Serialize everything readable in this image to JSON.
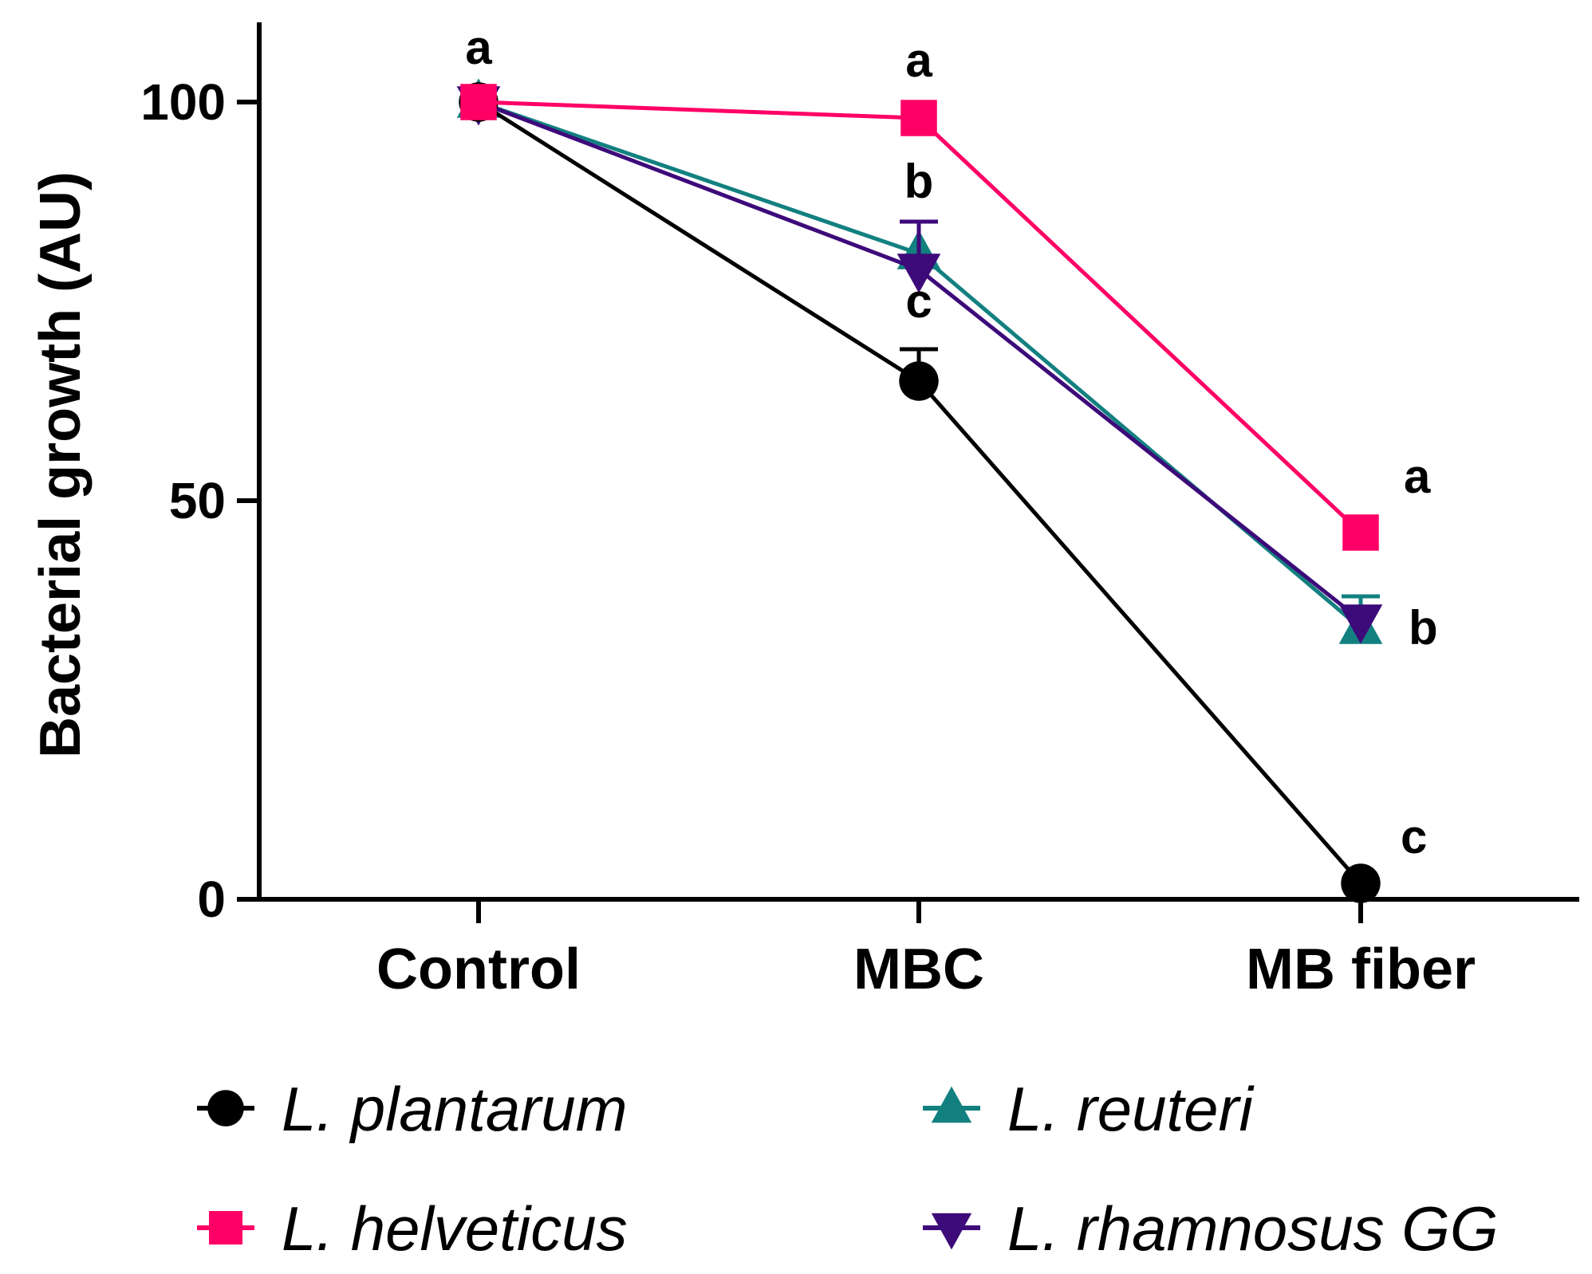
{
  "chart_data": {
    "type": "line",
    "categories": [
      "Control",
      "MBC",
      "MB fiber"
    ],
    "xlabel": "",
    "ylabel": "Bacterial growth (AU)",
    "ylim": [
      0,
      110
    ],
    "yticks": [
      0,
      50,
      100
    ],
    "grid": false,
    "legend_position": "bottom",
    "series": [
      {
        "name": "L. plantarum",
        "color": "#000000",
        "marker": "circle",
        "values": [
          100,
          65,
          2
        ],
        "errors": [
          0,
          4,
          0
        ],
        "letters": [
          "a",
          "c",
          "c"
        ]
      },
      {
        "name": "L. helveticus",
        "color": "#ff0066",
        "marker": "square",
        "values": [
          100,
          98,
          46
        ],
        "errors": [
          0,
          0,
          0
        ],
        "letters": [
          "",
          "a",
          "a"
        ]
      },
      {
        "name": "L. reuteri",
        "color": "#138080",
        "marker": "triangle-up",
        "values": [
          100,
          81,
          34
        ],
        "errors": [
          0,
          0,
          4
        ],
        "letters": [
          "",
          "",
          "b"
        ]
      },
      {
        "name": "L. rhamnosus GG",
        "color": "#3d0a7a",
        "marker": "triangle-down",
        "values": [
          100,
          79,
          35
        ],
        "errors": [
          0,
          6,
          0
        ],
        "letters": [
          "",
          "b",
          ""
        ]
      }
    ]
  }
}
